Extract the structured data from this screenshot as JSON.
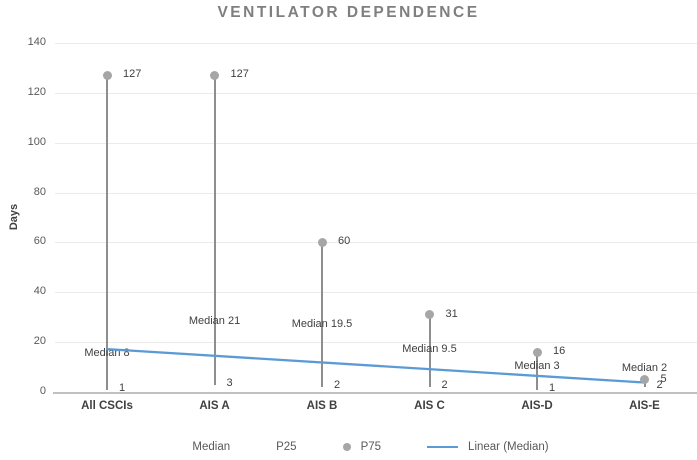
{
  "colors": {
    "trend": "#5b9bd5",
    "marker": "#a6a6a6",
    "range_line": "#8e8e8e",
    "title": "#7f7f7f",
    "label": "#404040",
    "tick": "#595959",
    "grid": "#ebebeb",
    "axis": "#c0c0c0"
  },
  "chart_data": {
    "type": "scatter",
    "title": "VENTILATOR DEPENDENCE",
    "xlabel": "",
    "ylabel": "Days",
    "ylim": [
      0,
      140
    ],
    "y_ticks": [
      0,
      20,
      40,
      60,
      80,
      100,
      120,
      140
    ],
    "grid": "horizontal",
    "legend_position": "bottom",
    "high_low_lines": true,
    "categories": [
      "All CSCIs",
      "AIS A",
      "AIS B",
      "AIS C",
      "AIS-D",
      "AIS-E"
    ],
    "series": [
      {
        "name": "Median",
        "marker": "none",
        "values": [
          8,
          21,
          19.5,
          9.5,
          3,
          2
        ],
        "labels": [
          "Median 8",
          "Median 21",
          "Median 19.5",
          "Median 9.5",
          "Median 3",
          "Median 2"
        ]
      },
      {
        "name": "P25",
        "marker": "none",
        "values": [
          1,
          3,
          2,
          2,
          1,
          2
        ],
        "labels": [
          "1",
          "3",
          "2",
          "2",
          "1",
          "2"
        ]
      },
      {
        "name": "P75",
        "marker": "dot",
        "values": [
          127,
          127,
          60,
          31,
          16,
          5
        ],
        "labels": [
          "127",
          "127",
          "60",
          "31",
          "16",
          "5"
        ]
      }
    ],
    "trend": {
      "name": "Linear (Median)",
      "start": 17.2,
      "end": 3.8
    },
    "legend": [
      "Median",
      "P25",
      "P75",
      "Linear (Median)"
    ]
  }
}
